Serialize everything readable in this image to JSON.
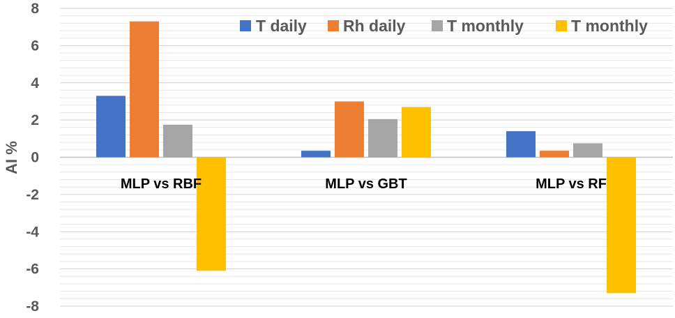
{
  "chart_data": {
    "type": "bar",
    "title": "",
    "xlabel": "",
    "ylabel": "AI %",
    "ylim": [
      -8,
      8
    ],
    "yticks": [
      8,
      6,
      4,
      2,
      0,
      -2,
      -4,
      -6,
      -8
    ],
    "grid": true,
    "legend_position": "top-right",
    "categories": [
      "MLP vs RBF",
      "MLP vs GBT",
      "MLP vs RF"
    ],
    "series": [
      {
        "name": "T daily",
        "color": "#4472c4",
        "values": [
          3.3,
          0.35,
          1.4
        ]
      },
      {
        "name": "Rh daily",
        "color": "#ed7d31",
        "values": [
          7.3,
          3.0,
          0.35
        ]
      },
      {
        "name": "T monthly",
        "color": "#a5a5a5",
        "values": [
          1.75,
          2.05,
          0.75
        ]
      },
      {
        "name": "T monthly",
        "color": "#ffc000",
        "values": [
          -6.1,
          2.7,
          -7.3
        ]
      }
    ]
  }
}
